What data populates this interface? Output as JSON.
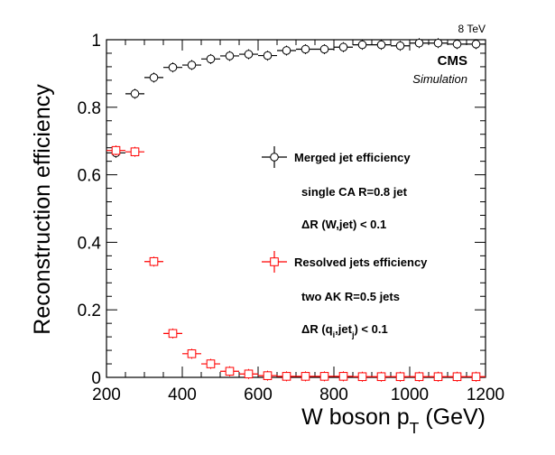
{
  "chart_data": {
    "type": "scatter",
    "energy_label": "8 TeV",
    "experiment_label": "CMS",
    "experiment_sublabel": "Simulation",
    "xlabel": "W boson p_T (GeV)",
    "ylabel": "Reconstruction efficiency",
    "xlim": [
      200,
      1200
    ],
    "ylim": [
      0,
      1
    ],
    "xticks": [
      200,
      400,
      600,
      800,
      1000,
      1200
    ],
    "yticks": [
      0,
      0.2,
      0.4,
      0.6,
      0.8,
      1
    ],
    "ytick_labels": [
      "0",
      "0.2",
      "0.4",
      "0.6",
      "0.8",
      "1"
    ],
    "grid": false,
    "legend_position": "center-right",
    "series": [
      {
        "name": "Merged jet efficiency",
        "marker": "open-circle",
        "color": "#000000",
        "legend_lines": [
          "single CA R=0.8 jet",
          "ΔR (W,jet) < 0.1"
        ],
        "x": [
          225,
          275,
          325,
          375,
          425,
          475,
          525,
          575,
          625,
          675,
          725,
          775,
          825,
          875,
          925,
          975,
          1025,
          1075,
          1125,
          1175
        ],
        "x_err": [
          25,
          25,
          25,
          25,
          25,
          25,
          25,
          25,
          25,
          25,
          25,
          25,
          25,
          25,
          25,
          25,
          25,
          25,
          25,
          25
        ],
        "y": [
          0.665,
          0.84,
          0.888,
          0.918,
          0.925,
          0.943,
          0.952,
          0.957,
          0.953,
          0.968,
          0.972,
          0.972,
          0.978,
          0.985,
          0.985,
          0.982,
          0.99,
          0.99,
          0.987,
          0.987
        ]
      },
      {
        "name": "Resolved jets efficiency",
        "marker": "open-square",
        "color": "#ff0000",
        "legend_lines": [
          "two AK R=0.5 jets",
          "ΔR (q_i,jet_j) < 0.1"
        ],
        "x": [
          225,
          275,
          325,
          375,
          425,
          475,
          525,
          575,
          625,
          675,
          725,
          775,
          825,
          875,
          925,
          975,
          1025,
          1075,
          1125,
          1175
        ],
        "x_err": [
          25,
          25,
          25,
          25,
          25,
          25,
          25,
          25,
          25,
          25,
          25,
          25,
          25,
          25,
          25,
          25,
          25,
          25,
          25,
          25
        ],
        "y": [
          0.672,
          0.668,
          0.343,
          0.13,
          0.07,
          0.04,
          0.018,
          0.01,
          0.005,
          0.003,
          0.003,
          0.003,
          0.003,
          0.002,
          0.002,
          0.002,
          0.002,
          0.002,
          0.002,
          0.002
        ]
      }
    ]
  }
}
